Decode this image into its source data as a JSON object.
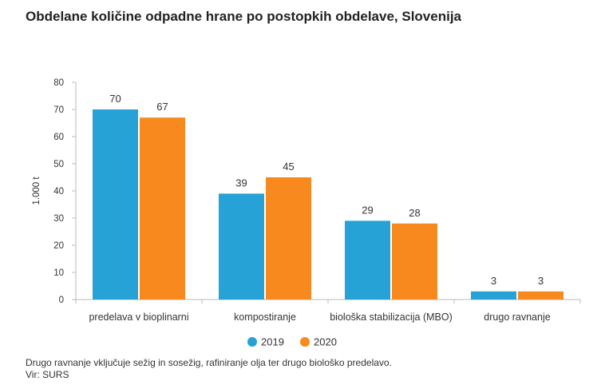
{
  "title": "Obdelane količine odpadne hrane po postopkih obdelave, Slovenija",
  "footnote": "Drugo ravnanje vključuje sežig in sosežig, rafiniranje olja ter drugo biološko predelavo.",
  "source": "Vir: SURS",
  "chart_data": {
    "type": "bar",
    "title": "Obdelane količine odpadne hrane po postopkih obdelave, Slovenija",
    "xlabel": "",
    "ylabel": "1.000 t",
    "ylim": [
      0,
      80
    ],
    "yticks": [
      0,
      10,
      20,
      30,
      40,
      50,
      60,
      70,
      80
    ],
    "grid": false,
    "legend": "bottom-center",
    "categories": [
      "predelava v bioplinarni",
      "kompostiranje",
      "biološka stabilizacija (MBO)",
      "drugo ravnanje"
    ],
    "series": [
      {
        "name": "2019",
        "color": "#27a2d6",
        "values": [
          70,
          39,
          29,
          3
        ]
      },
      {
        "name": "2020",
        "color": "#f7891f",
        "values": [
          67,
          45,
          28,
          3
        ]
      }
    ]
  }
}
